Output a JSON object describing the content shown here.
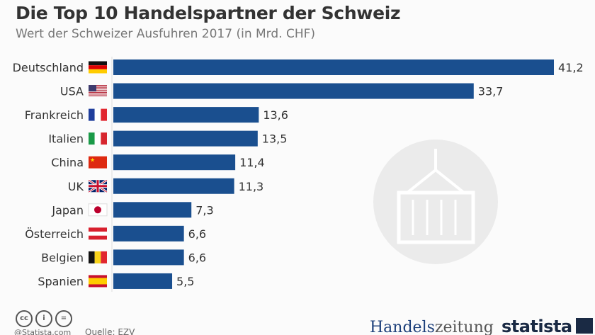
{
  "chart_data": {
    "type": "bar",
    "orientation": "horizontal",
    "title": "Die Top 10 Handelspartner der Schweiz",
    "subtitle": "Wert der Schweizer Ausfuhren 2017 (in Mrd. CHF)",
    "categories": [
      "Deutschland",
      "USA",
      "Frankreich",
      "Italien",
      "China",
      "UK",
      "Japan",
      "Österreich",
      "Belgien",
      "Spanien"
    ],
    "values": [
      41.2,
      33.7,
      13.6,
      13.5,
      11.4,
      11.3,
      7.3,
      6.6,
      6.6,
      5.5
    ],
    "value_labels": [
      "41,2",
      "33,7",
      "13,6",
      "13,5",
      "11,4",
      "11,3",
      "7,3",
      "6,6",
      "6,6",
      "5,5"
    ],
    "flags": [
      "de",
      "us",
      "fr",
      "it",
      "cn",
      "uk",
      "jp",
      "at",
      "be",
      "es"
    ],
    "bar_color": "#1a4f8f",
    "xlim": [
      0,
      42
    ],
    "grid": false
  },
  "footer": {
    "credit": "@Statista.com",
    "source": "Quelle: EZV",
    "brand1_a": "Handels",
    "brand1_b": "zeitung",
    "brand2": "statista",
    "license_icons": [
      "cc",
      "by",
      "nd"
    ]
  }
}
